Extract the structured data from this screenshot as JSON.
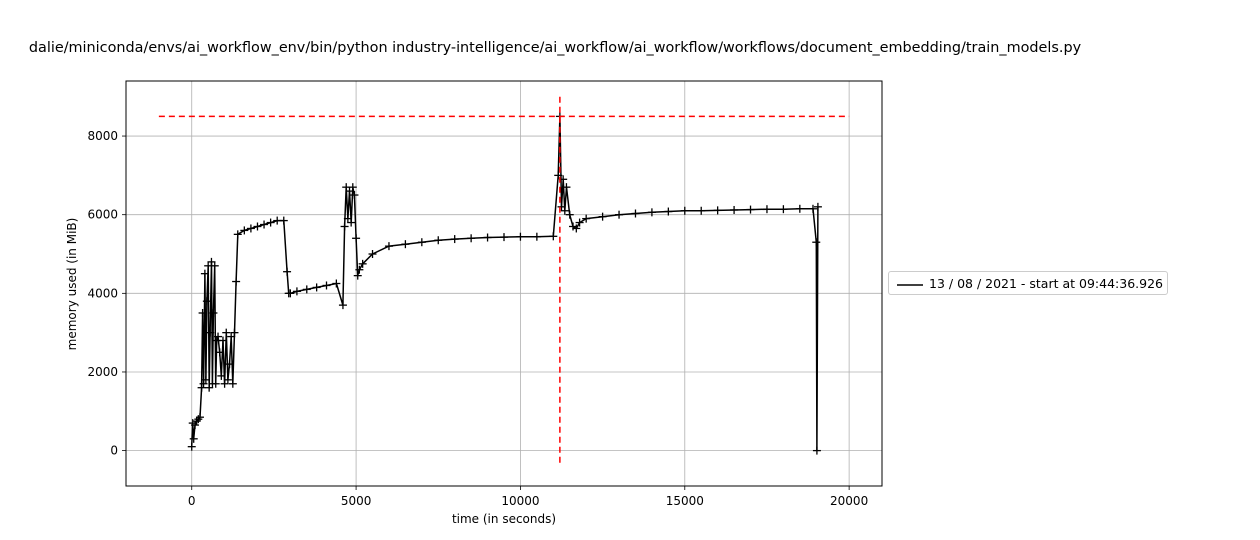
{
  "chart_data": {
    "type": "line",
    "title": "dalie/miniconda/envs/ai_workflow_env/bin/python industry-intelligence/ai_workflow/ai_workflow/workflows/document_embedding/train_models.py",
    "xlabel": "time (in seconds)",
    "ylabel": "memory used (in MiB)",
    "xlim": [
      -2000,
      21000
    ],
    "ylim": [
      -900,
      9400
    ],
    "xticks": [
      0,
      5000,
      10000,
      15000,
      20000
    ],
    "yticks": [
      0,
      2000,
      4000,
      6000,
      8000
    ],
    "grid": true,
    "legend_position": "center-right-outside",
    "series": [
      {
        "name": "13 / 08 / 2021 - start at 09:44:36.926",
        "color": "#000000",
        "marker": "+",
        "x": [
          0,
          30,
          60,
          100,
          150,
          200,
          250,
          300,
          330,
          360,
          400,
          430,
          460,
          500,
          530,
          560,
          600,
          630,
          660,
          700,
          730,
          760,
          800,
          850,
          900,
          950,
          1000,
          1050,
          1100,
          1150,
          1200,
          1250,
          1300,
          1350,
          1400,
          1600,
          1800,
          2000,
          2200,
          2400,
          2600,
          2800,
          2900,
          2950,
          3000,
          3200,
          3500,
          3800,
          4100,
          4400,
          4600,
          4650,
          4700,
          4750,
          4800,
          4850,
          4900,
          4950,
          5000,
          5050,
          5100,
          5200,
          5500,
          6000,
          6500,
          7000,
          7500,
          8000,
          8500,
          9000,
          9500,
          10000,
          10500,
          11000,
          11150,
          11200,
          11250,
          11300,
          11350,
          11400,
          11500,
          11600,
          11700,
          11800,
          12000,
          12500,
          13000,
          13500,
          14000,
          14500,
          15000,
          15500,
          16000,
          16500,
          17000,
          17500,
          18000,
          18500,
          18900,
          19000,
          19020,
          19050
        ],
        "y": [
          100,
          700,
          300,
          650,
          750,
          800,
          850,
          1600,
          3500,
          1700,
          4500,
          1800,
          3800,
          4700,
          1600,
          3000,
          4800,
          1700,
          3500,
          4700,
          1700,
          2800,
          2900,
          2500,
          1900,
          2800,
          1700,
          3000,
          1800,
          2200,
          2900,
          1700,
          3000,
          4300,
          5500,
          5600,
          5650,
          5700,
          5750,
          5800,
          5850,
          5850,
          4550,
          4000,
          4000,
          4050,
          4100,
          4150,
          4200,
          4250,
          3700,
          5700,
          6700,
          5900,
          6600,
          5800,
          6700,
          6500,
          5400,
          4450,
          4600,
          4750,
          5000,
          5200,
          5250,
          5300,
          5350,
          5380,
          5400,
          5420,
          5430,
          5440,
          5440,
          5450,
          7000,
          8500,
          6200,
          6900,
          6100,
          6700,
          6000,
          5700,
          5650,
          5800,
          5900,
          5950,
          6000,
          6030,
          6060,
          6080,
          6100,
          6100,
          6110,
          6120,
          6130,
          6140,
          6140,
          6150,
          6150,
          5300,
          0,
          6200
        ]
      }
    ],
    "annotations": [
      {
        "kind": "hline",
        "y": 8500,
        "x_from": -1000,
        "x_to": 20000,
        "color": "#ff0000",
        "style": "dashed"
      },
      {
        "kind": "vline",
        "x": 11200,
        "y_from": -400,
        "y_to": 9000,
        "color": "#ff0000",
        "style": "dashed"
      }
    ]
  }
}
